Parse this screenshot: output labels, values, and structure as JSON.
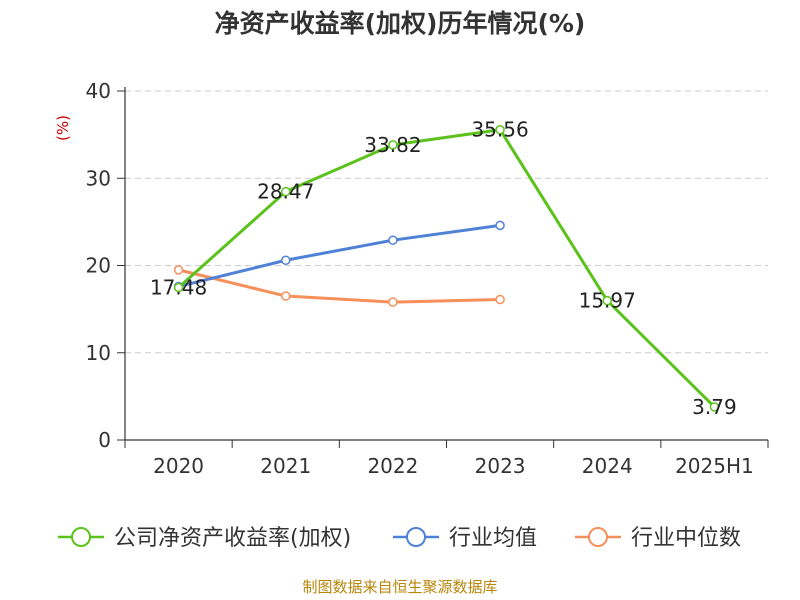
{
  "chart_data": {
    "type": "line",
    "title": "净资产收益率(加权)历年情况(%)",
    "ylabel": "(%)",
    "ylim": [
      0,
      40
    ],
    "yticks": [
      0,
      10,
      20,
      30,
      40
    ],
    "grid": true,
    "legend_position": "bottom",
    "categories": [
      "2020",
      "2021",
      "2022",
      "2023",
      "2024",
      "2025H1"
    ],
    "series": [
      {
        "name": "公司净资产收益率(加权)",
        "color": "#5bc21c",
        "values": [
          17.48,
          28.47,
          33.82,
          35.56,
          15.97,
          3.79
        ],
        "labels": [
          "17.48",
          "28.47",
          "33.82",
          "35.56",
          "15.97",
          "3.79"
        ]
      },
      {
        "name": "行业均值",
        "color": "#4f81d6",
        "values": [
          17.6,
          20.6,
          22.9,
          24.6,
          null,
          null
        ]
      },
      {
        "name": "行业中位数",
        "color": "#f5905b",
        "values": [
          19.5,
          16.5,
          15.8,
          16.1,
          null,
          null
        ]
      }
    ]
  },
  "source": "制图数据来自恒生聚源数据库"
}
